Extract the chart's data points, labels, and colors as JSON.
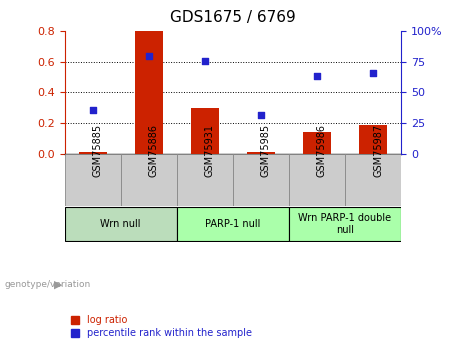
{
  "title": "GDS1675 / 6769",
  "samples": [
    "GSM75885",
    "GSM75886",
    "GSM75931",
    "GSM75985",
    "GSM75986",
    "GSM75987"
  ],
  "log_ratio": [
    0.01,
    0.8,
    0.3,
    0.01,
    0.14,
    0.19
  ],
  "percentile_rank_pct": [
    36,
    80,
    76,
    32,
    63,
    66
  ],
  "bar_color": "#cc2200",
  "dot_color": "#2222cc",
  "ylim_left": [
    0,
    0.8
  ],
  "ylim_right": [
    0,
    100
  ],
  "yticks_left": [
    0,
    0.2,
    0.4,
    0.6,
    0.8
  ],
  "yticks_right": [
    0,
    25,
    50,
    75,
    100
  ],
  "ytick_labels_right": [
    "0",
    "25",
    "50",
    "75",
    "100%"
  ],
  "groups": [
    {
      "label": "Wrn null",
      "start": 0,
      "end": 2,
      "color": "#bbddbb"
    },
    {
      "label": "PARP-1 null",
      "start": 2,
      "end": 4,
      "color": "#aaffaa"
    },
    {
      "label": "Wrn PARP-1 double\nnull",
      "start": 4,
      "end": 6,
      "color": "#aaffaa"
    }
  ],
  "sample_box_color": "#cccccc",
  "genotype_label": "genotype/variation",
  "legend_items": [
    {
      "label": "log ratio",
      "color": "#cc2200"
    },
    {
      "label": "percentile rank within the sample",
      "color": "#2222cc"
    }
  ],
  "tick_color_left": "#cc2200",
  "tick_color_right": "#2222cc",
  "grid_linestyle": ":",
  "background_color": "#ffffff"
}
